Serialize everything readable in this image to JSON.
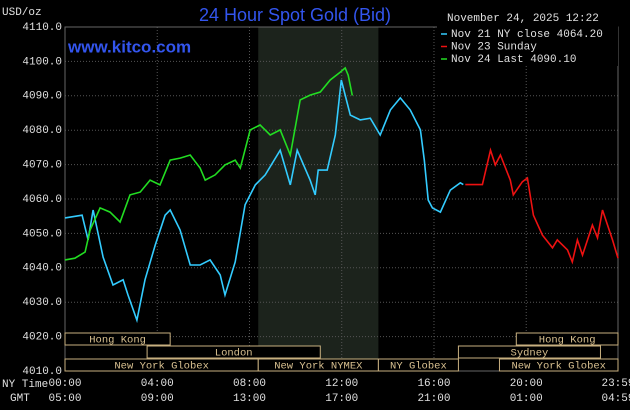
{
  "chart_data": {
    "type": "line",
    "title": "24 Hour Spot Gold (Bid)",
    "timestamp": "November 24, 2025 12:22",
    "website": "www.kitco.com",
    "y_label": "USD/oz",
    "x_label": "NY Time",
    "x2_label": "GMT",
    "xlim": [
      0,
      23.98
    ],
    "xticks": [
      {
        "value": 0,
        "label": "00:00"
      },
      {
        "value": 4,
        "label": "04:00"
      },
      {
        "value": 8,
        "label": "08:00"
      },
      {
        "value": 12,
        "label": "12:00"
      },
      {
        "value": 16,
        "label": "16:00"
      },
      {
        "value": 20,
        "label": "20:00"
      },
      {
        "value": 23.98,
        "label": "23:59"
      }
    ],
    "x2ticks": [
      "05:00",
      "09:00",
      "13:00",
      "17:00",
      "21:00",
      "01:00",
      "04:59"
    ],
    "ylim": [
      4010,
      4110
    ],
    "yticks": [
      {
        "value": 4010,
        "label": "4010.0"
      },
      {
        "value": 4020,
        "label": "4020.0"
      },
      {
        "value": 4030,
        "label": "4030.0"
      },
      {
        "value": 4040,
        "label": "4040.0"
      },
      {
        "value": 4050,
        "label": "4050.0"
      },
      {
        "value": 4060,
        "label": "4060.0"
      },
      {
        "value": 4070,
        "label": "4070.0"
      },
      {
        "value": 4080,
        "label": "4080.0"
      },
      {
        "value": 4090,
        "label": "4090.0"
      },
      {
        "value": 4100,
        "label": "4100.0"
      },
      {
        "value": 4110,
        "label": "4110.0"
      }
    ],
    "grid": true,
    "series": [
      {
        "name": "Nov 21 NY close 4064.20",
        "color": "#33ccff",
        "x": [
          0,
          0.74,
          1.0,
          1.22,
          1.65,
          2.08,
          2.52,
          2.73,
          3.12,
          3.47,
          3.91,
          4.34,
          4.56,
          4.99,
          5.43,
          5.86,
          6.29,
          6.73,
          6.94,
          7.38,
          7.81,
          8.25,
          8.68,
          9.33,
          9.77,
          10.07,
          10.63,
          10.85,
          10.98,
          11.37,
          11.72,
          11.98,
          12.37,
          12.8,
          13.24,
          13.67,
          14.11,
          14.54,
          14.97,
          15.41,
          15.58,
          15.75,
          15.93,
          16.28,
          16.71,
          17.14,
          17.27
        ],
        "values": [
          4054.5,
          4055.3,
          4048.1,
          4056.8,
          4043.1,
          4035.0,
          4036.5,
          4032.1,
          4024.8,
          4036.5,
          4046.6,
          4055.3,
          4056.8,
          4051.0,
          4040.8,
          4040.8,
          4042.3,
          4037.9,
          4032.1,
          4041.7,
          4058.3,
          4064.1,
          4067.0,
          4074.2,
          4064.1,
          4074.2,
          4065.5,
          4061.2,
          4068.4,
          4068.4,
          4078.6,
          4094.6,
          4084.4,
          4083.0,
          4083.5,
          4078.6,
          4085.9,
          4089.4,
          4085.9,
          4080.1,
          4071.3,
          4059.7,
          4057.4,
          4056.2,
          4062.6,
          4064.7,
          4064.2
        ]
      },
      {
        "name": "Nov 23 Sunday",
        "color": "#ee1111",
        "x": [
          17.36,
          18.1,
          18.45,
          18.66,
          18.88,
          19.31,
          19.44,
          19.83,
          20.05,
          20.31,
          20.7,
          21.14,
          21.35,
          21.79,
          22.0,
          22.22,
          22.44,
          22.87,
          23.09,
          23.31,
          23.74,
          23.98
        ],
        "values": [
          4064.2,
          4064.2,
          4074.2,
          4069.9,
          4072.8,
          4065.5,
          4061.2,
          4065.0,
          4066.1,
          4055.3,
          4049.5,
          4045.8,
          4048.1,
          4045.2,
          4041.7,
          4048.1,
          4043.7,
          4052.4,
          4048.7,
          4056.8,
          4048.1,
          4042.8
        ]
      },
      {
        "name": "Nov 24 Last 4090.10",
        "color": "#22dd22",
        "x": [
          0,
          0.43,
          0.87,
          1.09,
          1.52,
          1.95,
          2.39,
          2.82,
          3.26,
          3.69,
          4.12,
          4.56,
          4.99,
          5.43,
          5.86,
          6.08,
          6.51,
          6.94,
          7.38,
          7.6,
          8.03,
          8.46,
          8.9,
          9.33,
          9.77,
          10.2,
          10.63,
          11.07,
          11.5,
          11.94,
          12.15,
          12.28,
          12.46
        ],
        "values": [
          4042.3,
          4042.8,
          4044.6,
          4051.0,
          4057.4,
          4056.2,
          4053.3,
          4061.2,
          4062.0,
          4065.5,
          4064.1,
          4071.3,
          4071.9,
          4072.8,
          4069.0,
          4065.5,
          4067.0,
          4069.9,
          4071.3,
          4069.0,
          4080.1,
          4081.5,
          4078.6,
          4080.1,
          4072.8,
          4088.8,
          4090.2,
          4091.1,
          4094.6,
          4096.9,
          4098.1,
          4096.0,
          4090.1
        ]
      }
    ],
    "sessions": [
      [
        {
          "label": "Hong Kong",
          "start": 0,
          "end": 4.56
        },
        {
          "label": "Hong Kong",
          "start": 19.57,
          "end": 23.98
        }
      ],
      [
        {
          "label": "London",
          "start": 3.56,
          "end": 11.07
        },
        {
          "label": "Sydney",
          "start": 17.06,
          "end": 23.22
        }
      ],
      [
        {
          "label": "New York Globex",
          "start": 0,
          "end": 8.38
        },
        {
          "label": "New York NYMEX",
          "start": 8.38,
          "end": 13.59
        },
        {
          "label": "NY Globex",
          "start": 13.59,
          "end": 17.06
        },
        {
          "label": "New York Globex",
          "start": 18.84,
          "end": 23.98
        }
      ]
    ]
  }
}
